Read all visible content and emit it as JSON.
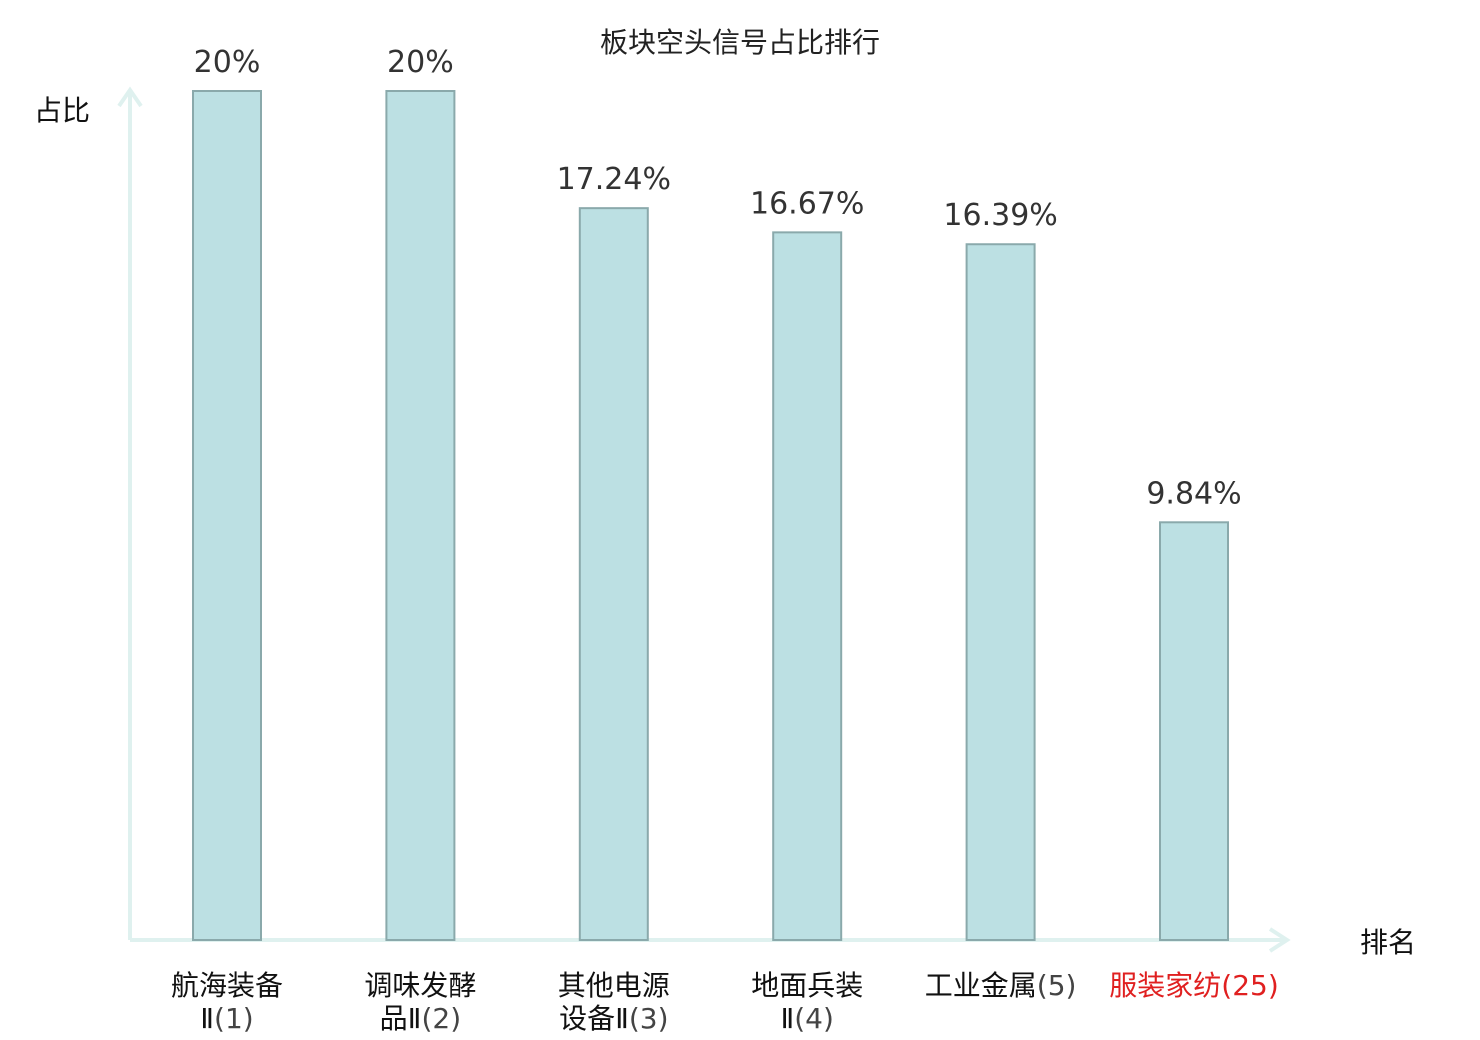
{
  "chart_data": {
    "type": "bar",
    "title": "板块空头信号占比排行",
    "ylabel": "占比",
    "xlabel": "排名",
    "ylim": [
      0,
      20
    ],
    "grid": false,
    "legend": "none",
    "categories": [
      {
        "name_lines": [
          "航海装备",
          "Ⅱ"
        ],
        "rank": "(1)",
        "highlight": false
      },
      {
        "name_lines": [
          "调味发酵",
          "品Ⅱ"
        ],
        "rank": "(2)",
        "highlight": false
      },
      {
        "name_lines": [
          "其他电源",
          "设备Ⅱ"
        ],
        "rank": "(3)",
        "highlight": false
      },
      {
        "name_lines": [
          "地面兵装",
          "Ⅱ"
        ],
        "rank": "(4)",
        "highlight": false
      },
      {
        "name_lines": [
          "工业金属"
        ],
        "rank": "(5)",
        "highlight": true,
        "highlight_style": "normal"
      },
      {
        "name_lines": [
          "服装家纺"
        ],
        "rank": "(25)",
        "highlight": true,
        "highlight_style": "red"
      }
    ],
    "values": [
      20,
      20,
      17.24,
      16.67,
      16.39,
      9.84
    ],
    "value_labels": [
      "20%",
      "20%",
      "17.24%",
      "16.67%",
      "16.39%",
      "9.84%"
    ]
  },
  "colors": {
    "bar_fill": "#bce0e3",
    "bar_stroke": "#8aa9ab",
    "axis": "#dff1ef",
    "text": "#111111",
    "rank_text": "#444444",
    "highlight": "#e02020"
  }
}
